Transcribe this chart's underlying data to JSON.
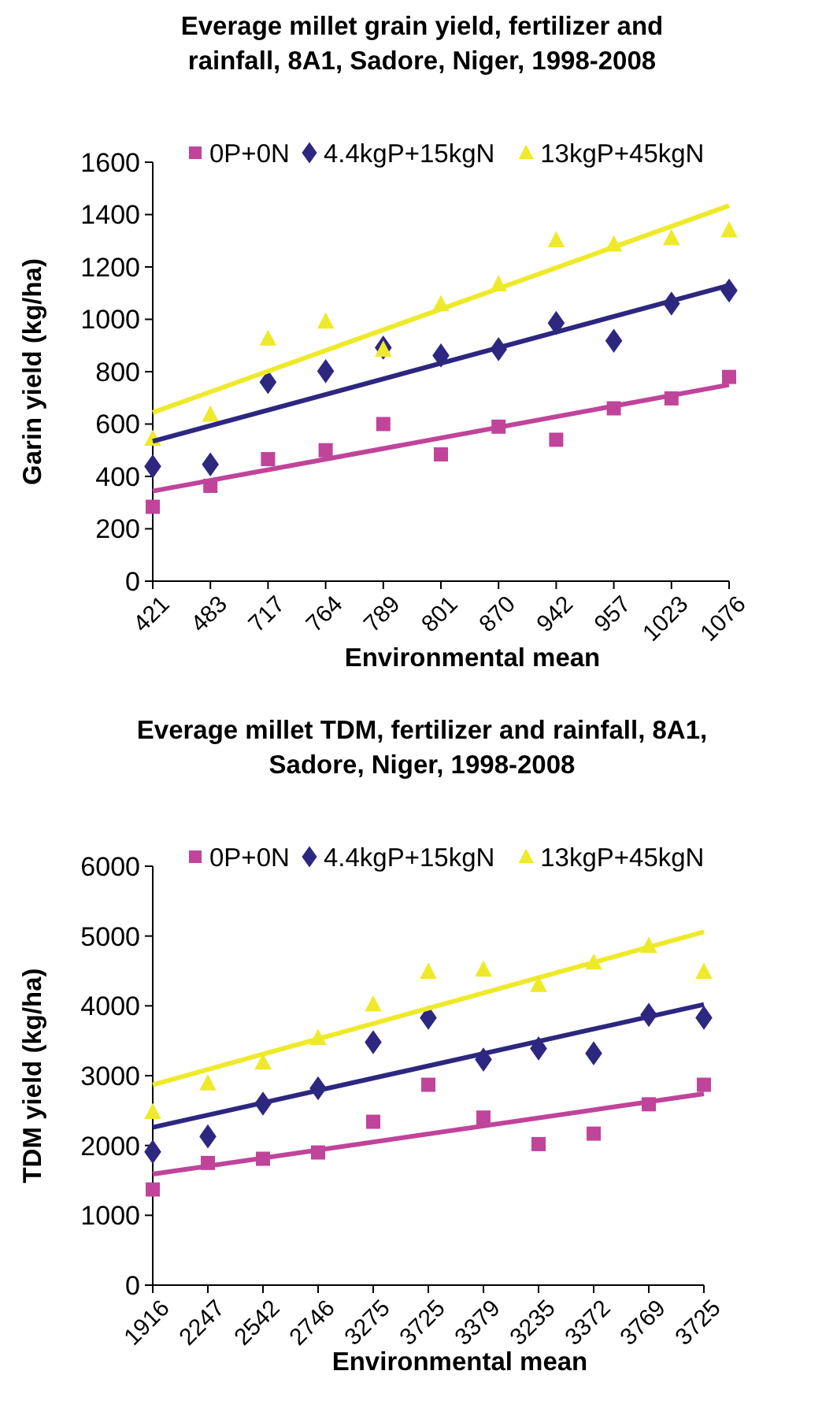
{
  "chart_data": [
    {
      "type": "scatter",
      "title": "Everage millet grain yield, fertilizer and\nrainfall, 8A1,  Sadore, Niger, 1998-2008",
      "xlabel": "Environmental mean",
      "ylabel": "Garin yield (kg/ha)",
      "categories": [
        "421",
        "483",
        "717",
        "764",
        "789",
        "801",
        "870",
        "942",
        "957",
        "1023",
        "1076"
      ],
      "ylim": [
        0,
        1600
      ],
      "yticks": [
        0,
        200,
        400,
        600,
        800,
        1000,
        1200,
        1400,
        1600
      ],
      "grid": false,
      "legend": "top",
      "series": [
        {
          "name": "0P+0N",
          "color": "#c0449a",
          "marker": "square",
          "values": [
            284,
            364,
            466,
            500,
            600,
            484,
            590,
            540,
            660,
            698,
            780
          ]
        },
        {
          "name": "4.4kgP+15kgN",
          "color": "#2e2780",
          "marker": "diamond",
          "values": [
            438,
            446,
            760,
            802,
            892,
            862,
            886,
            986,
            918,
            1060,
            1110
          ]
        },
        {
          "name": "13kgP+45kgN",
          "color": "#eeea2a",
          "marker": "triangle",
          "values": [
            544,
            636,
            926,
            992,
            884,
            1058,
            1134,
            1302,
            1286,
            1310,
            1340
          ]
        },
        {
          "type": "line",
          "color": "#c0449a",
          "marker": "none",
          "values": [
            344,
            null,
            null,
            null,
            null,
            null,
            null,
            null,
            null,
            null,
            750
          ]
        },
        {
          "type": "line",
          "color": "#2e2780",
          "marker": "none",
          "values": [
            534,
            null,
            null,
            null,
            null,
            null,
            null,
            null,
            null,
            null,
            1130
          ]
        },
        {
          "type": "line",
          "color": "#eeea2a",
          "marker": "none",
          "values": [
            644,
            null,
            null,
            null,
            null,
            null,
            null,
            null,
            null,
            null,
            1434
          ]
        }
      ]
    },
    {
      "type": "scatter",
      "title": "Everage millet TDM, fertilizer and rainfall, 8A1,\nSadore, Niger, 1998-2008",
      "xlabel": "Environmental mean",
      "ylabel": "TDM yield (kg/ha)",
      "categories": [
        "1916",
        "2247",
        "2542",
        "2746",
        "3275",
        "3725",
        "3379",
        "3235",
        "3372",
        "3769",
        "3725"
      ],
      "ylim": [
        0,
        6000
      ],
      "yticks": [
        0,
        1000,
        2000,
        3000,
        4000,
        5000,
        6000
      ],
      "grid": false,
      "legend": "top",
      "series": [
        {
          "name": "0P+0N",
          "color": "#c0449a",
          "marker": "square",
          "values": [
            1370,
            1750,
            1810,
            1900,
            2340,
            2870,
            2400,
            2020,
            2170,
            2590,
            2870
          ]
        },
        {
          "name": "4.4kgP+15kgN",
          "color": "#2e2780",
          "marker": "diamond",
          "values": [
            1910,
            2130,
            2600,
            2820,
            3480,
            3830,
            3230,
            3390,
            3320,
            3870,
            3830
          ]
        },
        {
          "name": "13kgP+45kgN",
          "color": "#eeea2a",
          "marker": "triangle",
          "values": [
            2480,
            2890,
            3190,
            3540,
            4020,
            4490,
            4520,
            4300,
            4620,
            4860,
            4490
          ]
        },
        {
          "type": "line",
          "color": "#c0449a",
          "marker": "none",
          "values": [
            1590,
            null,
            null,
            null,
            null,
            null,
            null,
            null,
            null,
            null,
            2740
          ]
        },
        {
          "type": "line",
          "color": "#2e2780",
          "marker": "none",
          "values": [
            2260,
            null,
            null,
            null,
            null,
            null,
            null,
            null,
            null,
            null,
            4020
          ]
        },
        {
          "type": "line",
          "color": "#eeea2a",
          "marker": "none",
          "values": [
            2870,
            null,
            null,
            null,
            null,
            null,
            null,
            null,
            null,
            null,
            5060
          ]
        }
      ]
    }
  ]
}
